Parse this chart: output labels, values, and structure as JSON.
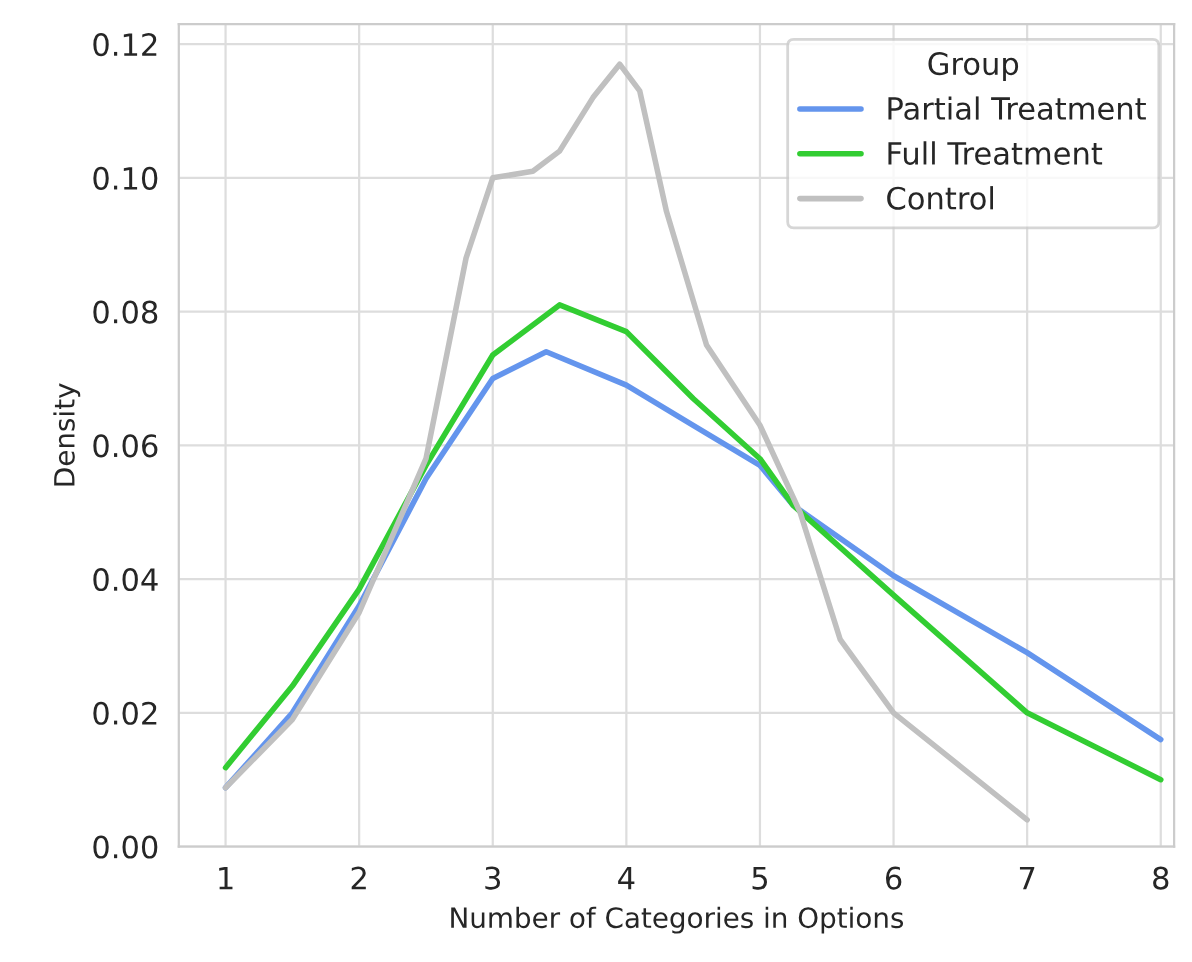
{
  "chart_data": {
    "type": "line",
    "xlabel": "Number of Categories in Options",
    "ylabel": "Density",
    "legend_title": "Group",
    "legend": "top right",
    "grid": true,
    "xlim": [
      0.65,
      8.1
    ],
    "ylim": [
      0,
      0.123
    ],
    "xticks": [
      1,
      2,
      3,
      4,
      5,
      6,
      7,
      8
    ],
    "yticks": [
      {
        "value": 0,
        "label": "0.00"
      },
      {
        "value": 0.02,
        "label": "0.02"
      },
      {
        "value": 0.04,
        "label": "0.04"
      },
      {
        "value": 0.06,
        "label": "0.06"
      },
      {
        "value": 0.08,
        "label": "0.08"
      },
      {
        "value": 0.1,
        "label": "0.10"
      },
      {
        "value": 0.12,
        "label": "0.12"
      }
    ],
    "series": [
      {
        "name": "Partial Treatment",
        "color": "#6495ed",
        "x": [
          1,
          1.5,
          2,
          2.5,
          3,
          3.4,
          4,
          4.5,
          5,
          5.25,
          6,
          7,
          8
        ],
        "values": [
          0.0088,
          0.02,
          0.036,
          0.055,
          0.07,
          0.074,
          0.069,
          0.063,
          0.057,
          0.051,
          0.0405,
          0.029,
          0.016
        ]
      },
      {
        "name": "Full Treatment",
        "color": "#32cd32",
        "x": [
          1,
          1.5,
          2,
          2.5,
          3,
          3.5,
          4,
          4.5,
          5,
          5.25,
          6,
          7,
          8
        ],
        "values": [
          0.0118,
          0.024,
          0.0385,
          0.057,
          0.0735,
          0.081,
          0.077,
          0.067,
          0.058,
          0.051,
          0.0376,
          0.02,
          0.01
        ]
      },
      {
        "name": "Control",
        "color": "#c0c0c0",
        "x": [
          1,
          1.5,
          2,
          2.5,
          2.8,
          3,
          3.3,
          3.5,
          3.75,
          3.95,
          4.1,
          4.3,
          4.6,
          5,
          5.3,
          5.6,
          6,
          6.5,
          7
        ],
        "values": [
          0.0088,
          0.019,
          0.035,
          0.058,
          0.088,
          0.1,
          0.101,
          0.104,
          0.112,
          0.117,
          0.113,
          0.095,
          0.075,
          0.063,
          0.05,
          0.031,
          0.02,
          0.012,
          0.004
        ]
      }
    ]
  }
}
